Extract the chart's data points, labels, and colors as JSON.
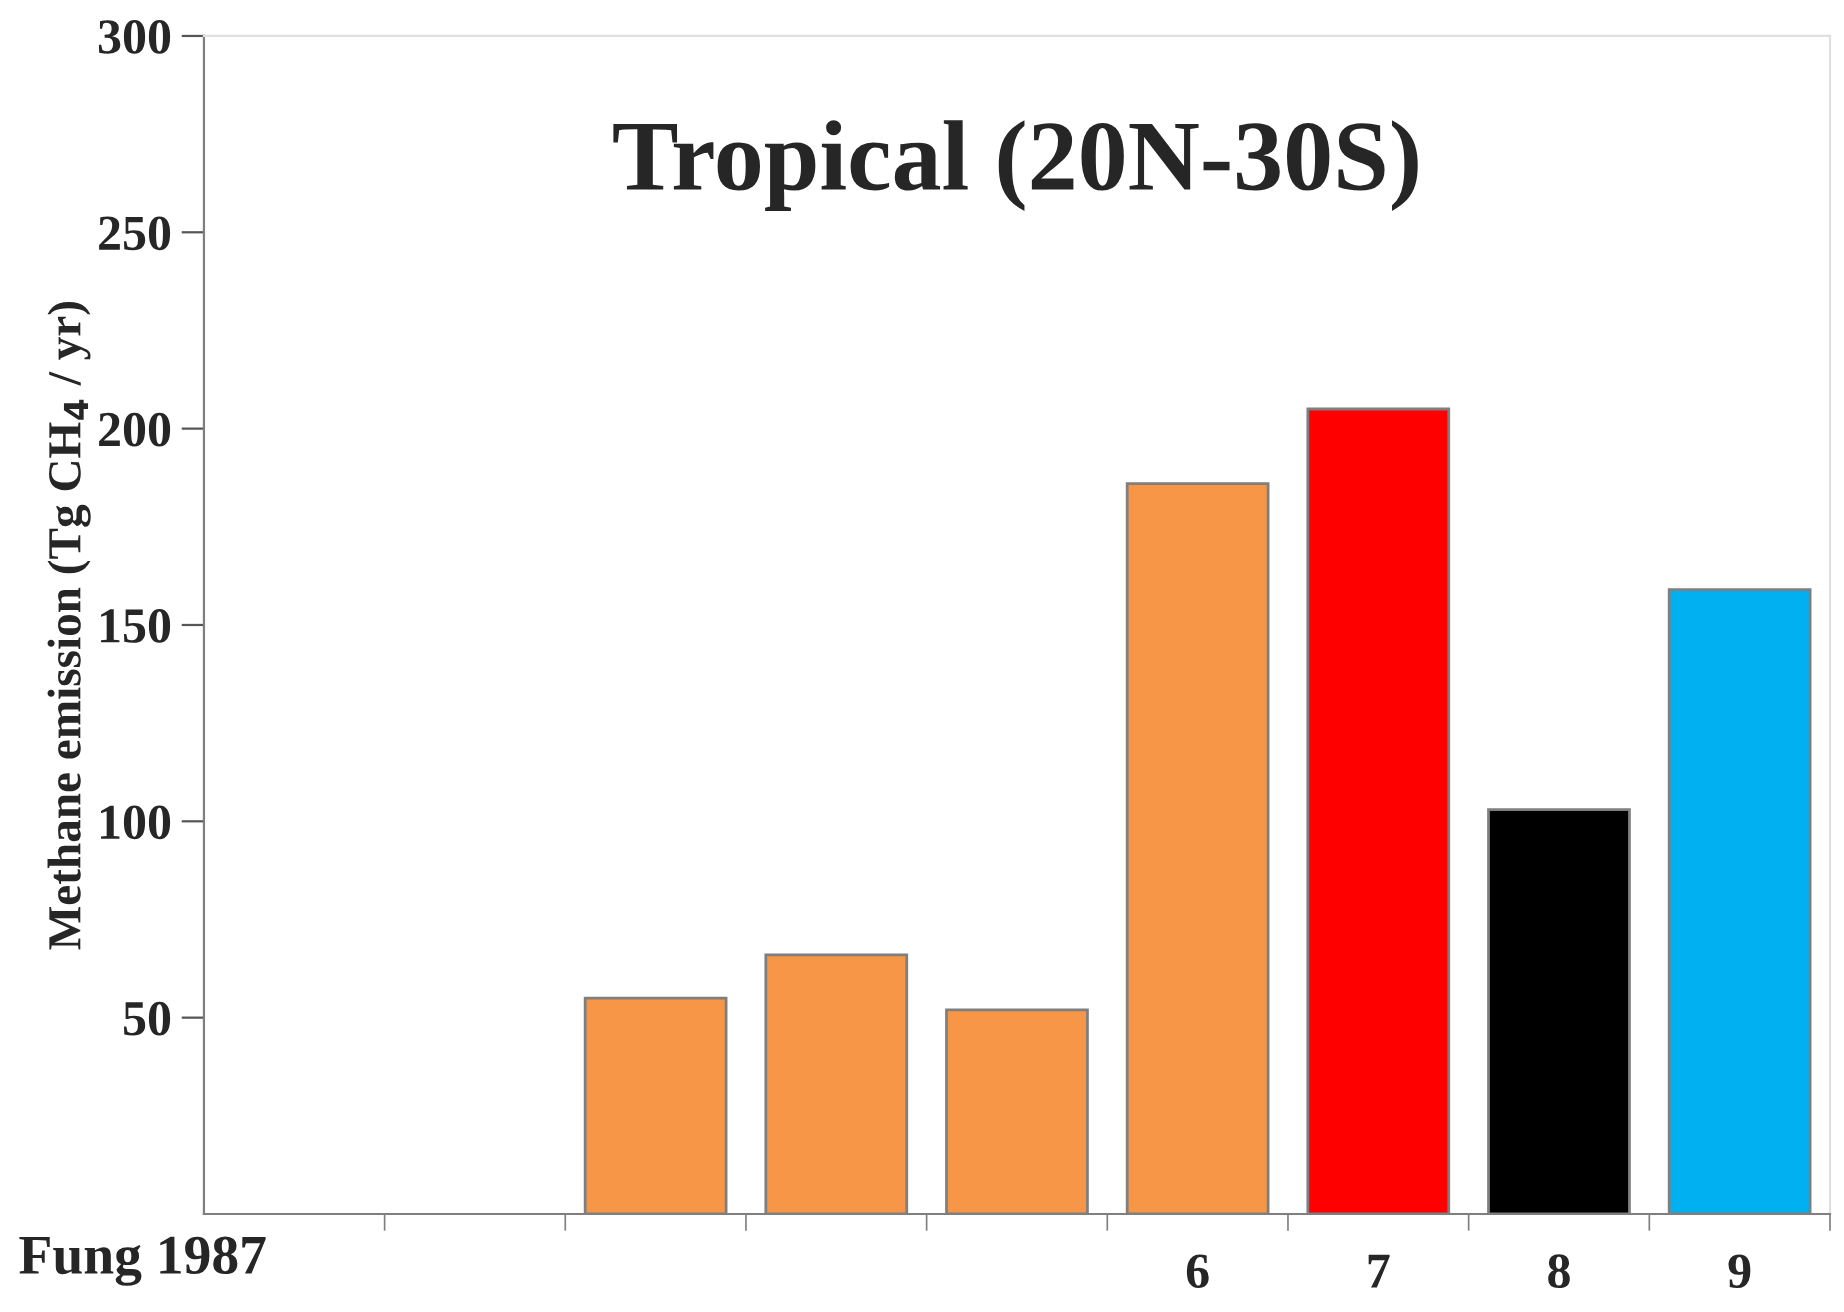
{
  "chart_data": {
    "type": "bar",
    "title": "Tropical (20N-30S)",
    "ylabel": "Methane emission (Tg CH$_{4}$ / yr)",
    "categories": [
      null,
      null,
      null,
      null,
      null,
      "6",
      "7",
      "8",
      "9"
    ],
    "values": [
      null,
      null,
      55,
      66,
      52,
      186,
      205,
      103,
      159
    ],
    "colors": [
      "#f79646",
      "#f79646",
      "#f79646",
      "#f79646",
      "#f79646",
      "#f79646",
      "#ff0000",
      "#000000",
      "#00b0f0"
    ],
    "ylim": [
      0,
      300
    ],
    "yticks": [
      50,
      100,
      150,
      200,
      250,
      300
    ],
    "grid": false,
    "legend": false,
    "annotations": [
      "Fung 1987"
    ]
  }
}
